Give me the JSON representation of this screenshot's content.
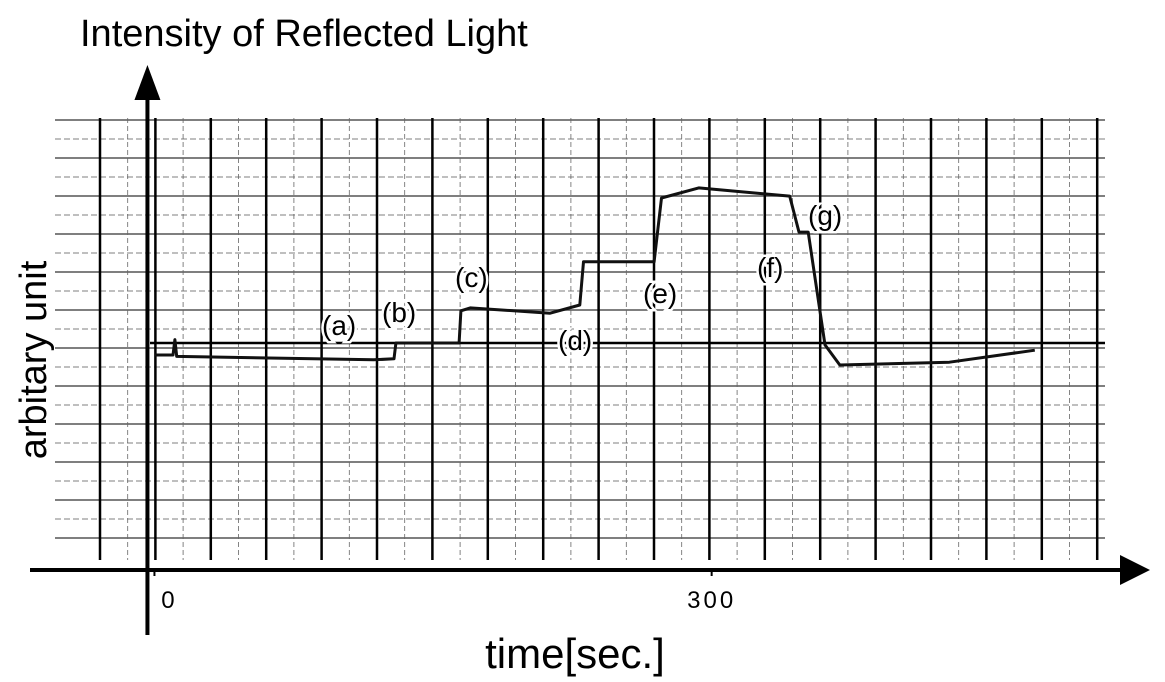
{
  "chart_data": {
    "type": "line",
    "title": "Intensity of Reflected Light",
    "xlabel": "time[sec.]",
    "ylabel": "arbitary unit",
    "x": [
      0,
      10,
      11,
      12,
      118,
      129,
      130,
      164,
      165,
      170,
      213,
      229,
      231,
      269,
      273,
      293,
      342,
      347,
      352,
      361,
      369,
      428,
      474
    ],
    "values": [
      4.48,
      4.48,
      4.8,
      4.45,
      4.38,
      4.4,
      4.73,
      4.73,
      5.4,
      5.46,
      5.35,
      5.52,
      6.42,
      6.42,
      7.75,
      7.96,
      7.79,
      7.04,
      7.04,
      4.69,
      4.27,
      4.33,
      4.58
    ],
    "color": "#111111",
    "xlim": [
      -67,
      536
    ],
    "ylim": [
      0,
      10
    ],
    "xticks": [
      0,
      300
    ],
    "annotations": [
      "(a)",
      "(b)",
      "(c)",
      "(d)",
      "(e)",
      "(f)",
      "(g)"
    ]
  }
}
